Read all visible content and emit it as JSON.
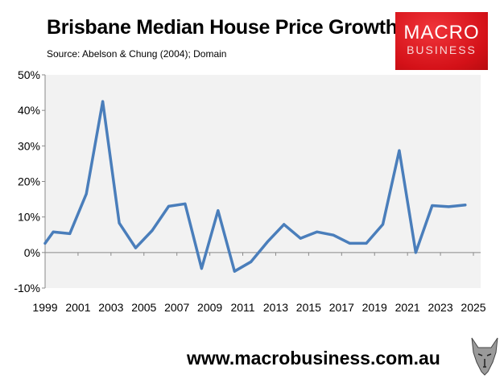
{
  "chart_data": {
    "type": "line",
    "title": "Brisbane Median House Price Growth",
    "subtitle": "Source: Abelson & Chung (2004); Domain",
    "xlabel": "",
    "ylabel": "",
    "xlim": [
      1999,
      2025
    ],
    "ylim": [
      -10,
      50
    ],
    "x_ticks": [
      "1999",
      "2001",
      "2003",
      "2005",
      "2007",
      "2009",
      "2011",
      "2013",
      "2015",
      "2017",
      "2019",
      "2021",
      "2023",
      "2025"
    ],
    "y_ticks": [
      "-10%",
      "0%",
      "10%",
      "20%",
      "30%",
      "40%",
      "50%"
    ],
    "grid": false,
    "legend": "none",
    "series": [
      {
        "color": "#4a7ebb",
        "x": [
          1999,
          1999.5,
          2000.5,
          2001.5,
          2002.5,
          2003.5,
          2004.5,
          2005.5,
          2006.5,
          2007.5,
          2008.5,
          2009.5,
          2010.5,
          2011.5,
          2012.5,
          2013.5,
          2014.5,
          2015.5,
          2016.5,
          2017.5,
          2018.5,
          2019.5,
          2020.5,
          2021.5,
          2022.5,
          2023.5,
          2024.5
        ],
        "values": [
          2.6,
          5.8,
          5.3,
          16.5,
          42.5,
          8.3,
          1.3,
          6.2,
          13.0,
          13.7,
          -4.5,
          11.8,
          -5.3,
          -2.6,
          3.0,
          7.9,
          4.0,
          5.8,
          4.9,
          2.6,
          2.6,
          7.9,
          28.7,
          0.0,
          13.2,
          12.9,
          13.4
        ]
      }
    ],
    "plot_background": "#f2f2f2"
  },
  "logo": {
    "line1": "MACRO",
    "line2": "BUSINESS",
    "color": "#d41118"
  },
  "footer": {
    "url": "www.macrobusiness.com.au"
  }
}
